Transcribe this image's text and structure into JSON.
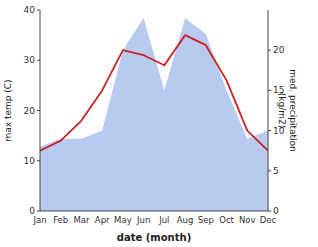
{
  "chart_data": {
    "type": "line",
    "categories": [
      "Jan",
      "Feb",
      "Mar",
      "Apr",
      "May",
      "Jun",
      "Jul",
      "Aug",
      "Sep",
      "Oct",
      "Nov",
      "Dec"
    ],
    "series": [
      {
        "type": "line",
        "color": "#cc2222",
        "values": [
          12,
          14,
          18,
          24,
          32,
          31,
          29,
          35,
          33,
          26,
          16,
          12
        ]
      },
      {
        "type": "area",
        "color": "#b0c4ee",
        "axis": "y2",
        "values": [
          8,
          9,
          9,
          10,
          20,
          24,
          15,
          24,
          22,
          15,
          9,
          10
        ]
      }
    ],
    "ylim": [
      0,
      40
    ],
    "yticks": [
      0,
      10,
      20,
      30,
      40
    ],
    "y2lim": [
      0,
      25
    ],
    "y2ticks": [
      0,
      5,
      10,
      15,
      20
    ],
    "xlabel": "date (month)",
    "ylabel": "max temp (C)",
    "y2label": "med. precipitation\n(kg/m2)",
    "grid": false
  }
}
